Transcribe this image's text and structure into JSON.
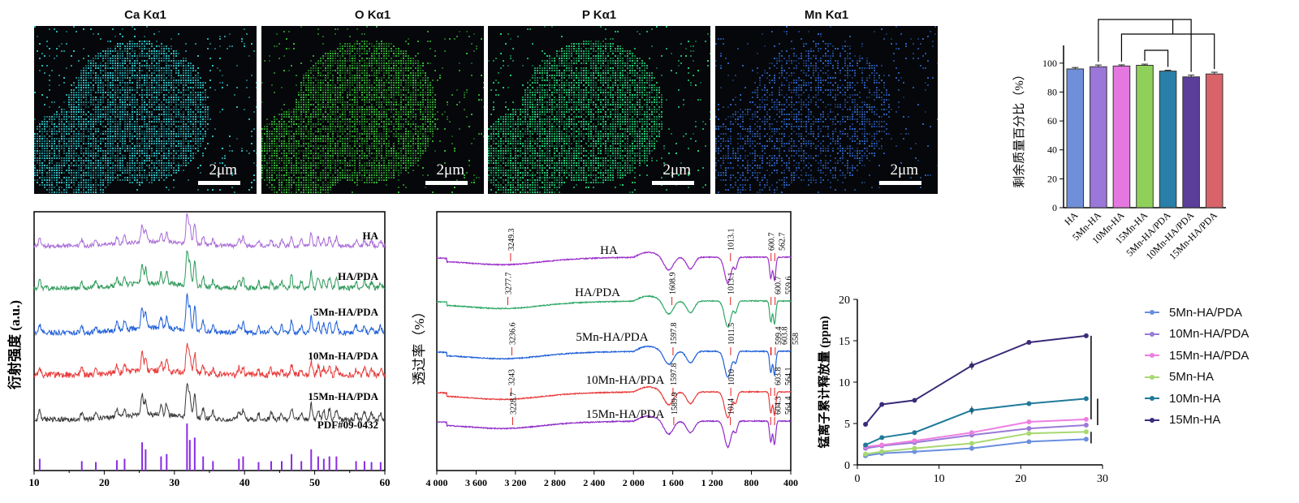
{
  "eds_maps": [
    {
      "title": "Ca Kα1",
      "scale": "2μm",
      "color": "#2ec9cf"
    },
    {
      "title": "O Kα1",
      "scale": "2μm",
      "color": "#35c035"
    },
    {
      "title": "P Kα1",
      "scale": "2μm",
      "color": "#22d67a"
    },
    {
      "title": "Mn Kα1",
      "scale": "2μm",
      "color": "#2e66c8"
    }
  ],
  "chart_data": [
    {
      "type": "bar",
      "ylabel": "剩余质量百分比（%）",
      "ylim": [
        0,
        110
      ],
      "yticks": [
        0,
        20,
        40,
        60,
        80,
        100
      ],
      "categories": [
        "HA",
        "5Mn-HA",
        "10Mn-HA",
        "15Mn-HA",
        "5Mn-HA/PDA",
        "10Mn-HA/PDA",
        "15Mn-HA/PDA"
      ],
      "values": [
        96,
        97.5,
        98,
        98.5,
        94.5,
        90.5,
        92.5
      ],
      "errors": [
        1,
        1.2,
        0.8,
        0.8,
        0.6,
        1.2,
        1.2
      ],
      "colors": [
        "#6f8fd8",
        "#9a77d8",
        "#e478e0",
        "#8fd05a",
        "#2a7fa8",
        "#5a3e9a",
        "#d8646a"
      ],
      "significance": [
        {
          "from": 1,
          "to": 5
        },
        {
          "from": 2,
          "to": 6
        },
        {
          "from": 3,
          "to": 4
        }
      ]
    },
    {
      "type": "line",
      "ylabel": "衍射强度 (a.u.)",
      "xlim": [
        10,
        60
      ],
      "xticks": [
        10,
        20,
        30,
        40,
        50,
        60
      ],
      "series": [
        {
          "name": "HA",
          "color": "#a86ad8"
        },
        {
          "name": "HA/PDA",
          "color": "#2e9a5a"
        },
        {
          "name": "5Mn-HA/PDA",
          "color": "#1f5fd8"
        },
        {
          "name": "10Mn-HA/PDA",
          "color": "#e83a3a"
        },
        {
          "name": "15Mn-HA/PDA",
          "color": "#3a3a3a"
        }
      ],
      "reference": {
        "name": "PDF#09-0432",
        "color": "#8a2be2",
        "peaks": [
          [
            10.8,
            0.25
          ],
          [
            16.8,
            0.2
          ],
          [
            18.8,
            0.18
          ],
          [
            21.8,
            0.22
          ],
          [
            22.9,
            0.25
          ],
          [
            25.4,
            0.6
          ],
          [
            25.9,
            0.45
          ],
          [
            28.1,
            0.3
          ],
          [
            28.9,
            0.35
          ],
          [
            31.8,
            1.0
          ],
          [
            32.2,
            0.65
          ],
          [
            32.9,
            0.7
          ],
          [
            34.1,
            0.3
          ],
          [
            35.5,
            0.2
          ],
          [
            39.2,
            0.25
          ],
          [
            39.8,
            0.3
          ],
          [
            42.0,
            0.18
          ],
          [
            43.8,
            0.2
          ],
          [
            45.3,
            0.2
          ],
          [
            46.7,
            0.35
          ],
          [
            48.1,
            0.2
          ],
          [
            49.5,
            0.45
          ],
          [
            50.5,
            0.3
          ],
          [
            51.3,
            0.25
          ],
          [
            52.1,
            0.3
          ],
          [
            53.1,
            0.3
          ],
          [
            55.9,
            0.2
          ],
          [
            57.1,
            0.2
          ],
          [
            58.1,
            0.18
          ],
          [
            59.4,
            0.18
          ]
        ]
      }
    },
    {
      "type": "line",
      "ylabel": "透过率（%）",
      "xlim": [
        4000,
        400
      ],
      "xticks": [
        4000,
        3600,
        3200,
        2800,
        2400,
        2000,
        1600,
        1200,
        800,
        400
      ],
      "xtick_labels": [
        "4 000",
        "3 600",
        "3 200",
        "2 800",
        "2 400",
        "2 000",
        "1 600",
        "1 200",
        "800",
        "400"
      ],
      "series": [
        {
          "name": "HA",
          "color": "#9b2fc9",
          "annotations": [
            "3249.3",
            "1013.1",
            "600.7",
            "562.7"
          ]
        },
        {
          "name": "HA/PDA",
          "color": "#2fa866",
          "annotations": [
            "3277.7",
            "1608.9",
            "1013.1",
            "600.7",
            "559.6"
          ]
        },
        {
          "name": "5Mn-HA/PDA",
          "color": "#1f5fd8",
          "annotations": [
            "3236.6",
            "1597.8",
            "1011.5",
            "599.4",
            "603.8",
            "558"
          ]
        },
        {
          "name": "10Mn-HA/PDA",
          "color": "#e83a3a",
          "annotations": [
            "3243",
            "1597.8",
            "1010",
            "603.8",
            "564.1"
          ]
        },
        {
          "name": "15Mn-HA/PDA",
          "color": "#8e2bc9",
          "annotations": [
            "3228.7",
            "1589.9",
            "1014",
            "604.3",
            "564.4"
          ]
        }
      ]
    },
    {
      "type": "line",
      "ylabel": "锰离子累计释放量 (ppm)",
      "xlim": [
        0,
        30
      ],
      "ylim": [
        0,
        20
      ],
      "xticks": [
        0,
        10,
        20,
        30
      ],
      "yticks": [
        0,
        5,
        10,
        15,
        20
      ],
      "series": [
        {
          "name": "5Mn-HA/PDA",
          "color": "#6a8ee0",
          "x": [
            1,
            3,
            7,
            14,
            21,
            28
          ],
          "y": [
            1.1,
            1.4,
            1.6,
            2.0,
            2.8,
            3.1
          ]
        },
        {
          "name": "10Mn-HA/PDA",
          "color": "#9a7ad8",
          "x": [
            1,
            3,
            7,
            14,
            21,
            28
          ],
          "y": [
            2.0,
            2.3,
            2.7,
            3.6,
            4.4,
            4.8
          ]
        },
        {
          "name": "15Mn-HA/PDA",
          "color": "#ee7ee0",
          "x": [
            1,
            3,
            7,
            14,
            21,
            28
          ],
          "y": [
            2.2,
            2.4,
            2.9,
            3.9,
            5.2,
            5.5
          ]
        },
        {
          "name": "5Mn-HA",
          "color": "#a8d870",
          "x": [
            1,
            3,
            7,
            14,
            21,
            28
          ],
          "y": [
            1.3,
            1.6,
            2.0,
            2.6,
            3.8,
            4.0
          ]
        },
        {
          "name": "10Mn-HA",
          "color": "#1f7a9a",
          "x": [
            1,
            3,
            7,
            14,
            21,
            28
          ],
          "y": [
            2.4,
            3.3,
            3.9,
            6.6,
            7.4,
            8.0
          ]
        },
        {
          "name": "15Mn-HA",
          "color": "#3b2a7a",
          "x": [
            1,
            3,
            7,
            14,
            21,
            28
          ],
          "y": [
            4.9,
            7.3,
            7.8,
            12.0,
            14.8,
            15.6
          ]
        }
      ]
    }
  ]
}
